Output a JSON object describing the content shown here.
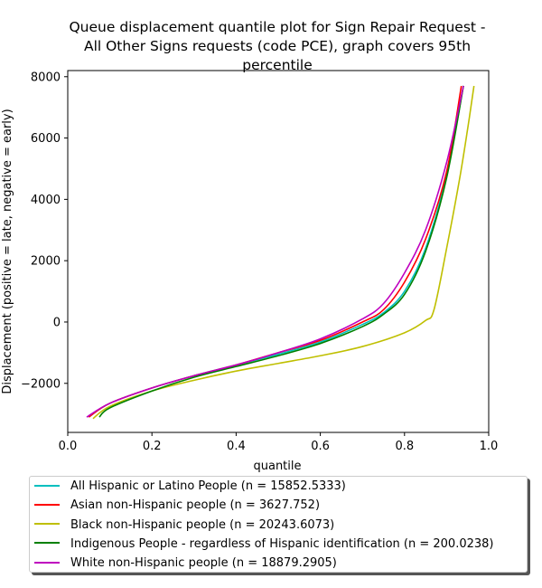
{
  "chart_data": {
    "type": "line",
    "title_lines": [
      "Queue displacement quantile plot for Sign Repair Request -",
      "All Other Signs  requests (code PCE), graph covers 95th",
      "percentile"
    ],
    "xlabel": "quantile",
    "ylabel": "Displacement (positive = late, negative = early)",
    "xlim": [
      0.0,
      1.0
    ],
    "ylim": [
      -3600,
      8200
    ],
    "x_ticks": [
      0.0,
      0.2,
      0.4,
      0.6,
      0.8,
      1.0
    ],
    "x_tick_labels": [
      "0.0",
      "0.2",
      "0.4",
      "0.6",
      "0.8",
      "1.0"
    ],
    "y_ticks": [
      -2000,
      0,
      2000,
      4000,
      6000,
      8000
    ],
    "y_tick_labels": [
      "−2000",
      "0",
      "2000",
      "4000",
      "6000",
      "8000"
    ],
    "grid": false,
    "legend_position": "below",
    "series": [
      {
        "name": "All Hispanic or Latino People (n = 15852.5333)",
        "color": "#00bfbf",
        "points": [
          [
            0.05,
            -3100
          ],
          [
            0.1,
            -2650
          ],
          [
            0.2,
            -2150
          ],
          [
            0.3,
            -1750
          ],
          [
            0.4,
            -1400
          ],
          [
            0.5,
            -1050
          ],
          [
            0.6,
            -650
          ],
          [
            0.7,
            -80
          ],
          [
            0.75,
            300
          ],
          [
            0.8,
            1000
          ],
          [
            0.85,
            2400
          ],
          [
            0.9,
            4800
          ],
          [
            0.94,
            7700
          ]
        ]
      },
      {
        "name": "Asian non-Hispanic people (n = 3627.752)",
        "color": "#ff0000",
        "points": [
          [
            0.05,
            -3100
          ],
          [
            0.1,
            -2650
          ],
          [
            0.2,
            -2150
          ],
          [
            0.3,
            -1750
          ],
          [
            0.4,
            -1400
          ],
          [
            0.5,
            -1000
          ],
          [
            0.6,
            -600
          ],
          [
            0.7,
            0
          ],
          [
            0.75,
            400
          ],
          [
            0.8,
            1300
          ],
          [
            0.85,
            2700
          ],
          [
            0.9,
            4900
          ],
          [
            0.935,
            7700
          ]
        ]
      },
      {
        "name": "Black non-Hispanic people (n = 20243.6073)",
        "color": "#bfbf00",
        "points": [
          [
            0.06,
            -3150
          ],
          [
            0.1,
            -2750
          ],
          [
            0.2,
            -2250
          ],
          [
            0.3,
            -1900
          ],
          [
            0.4,
            -1600
          ],
          [
            0.5,
            -1350
          ],
          [
            0.6,
            -1100
          ],
          [
            0.7,
            -800
          ],
          [
            0.8,
            -350
          ],
          [
            0.85,
            50
          ],
          [
            0.87,
            400
          ],
          [
            0.9,
            2400
          ],
          [
            0.93,
            4600
          ],
          [
            0.95,
            6300
          ],
          [
            0.965,
            7700
          ]
        ]
      },
      {
        "name": "Indigenous People - regardless of Hispanic identification (n = 200.0238)",
        "color": "#008000",
        "points": [
          [
            0.075,
            -3100
          ],
          [
            0.1,
            -2800
          ],
          [
            0.2,
            -2250
          ],
          [
            0.3,
            -1800
          ],
          [
            0.4,
            -1450
          ],
          [
            0.5,
            -1100
          ],
          [
            0.6,
            -700
          ],
          [
            0.7,
            -150
          ],
          [
            0.75,
            250
          ],
          [
            0.8,
            900
          ],
          [
            0.85,
            2300
          ],
          [
            0.9,
            4700
          ],
          [
            0.94,
            7700
          ]
        ]
      },
      {
        "name": "White non-Hispanic people (n = 18879.2905)",
        "color": "#bf00bf",
        "points": [
          [
            0.045,
            -3100
          ],
          [
            0.1,
            -2650
          ],
          [
            0.2,
            -2150
          ],
          [
            0.3,
            -1750
          ],
          [
            0.4,
            -1400
          ],
          [
            0.5,
            -1000
          ],
          [
            0.6,
            -550
          ],
          [
            0.7,
            100
          ],
          [
            0.75,
            600
          ],
          [
            0.8,
            1600
          ],
          [
            0.85,
            3000
          ],
          [
            0.9,
            5200
          ],
          [
            0.94,
            7700
          ]
        ]
      }
    ]
  }
}
